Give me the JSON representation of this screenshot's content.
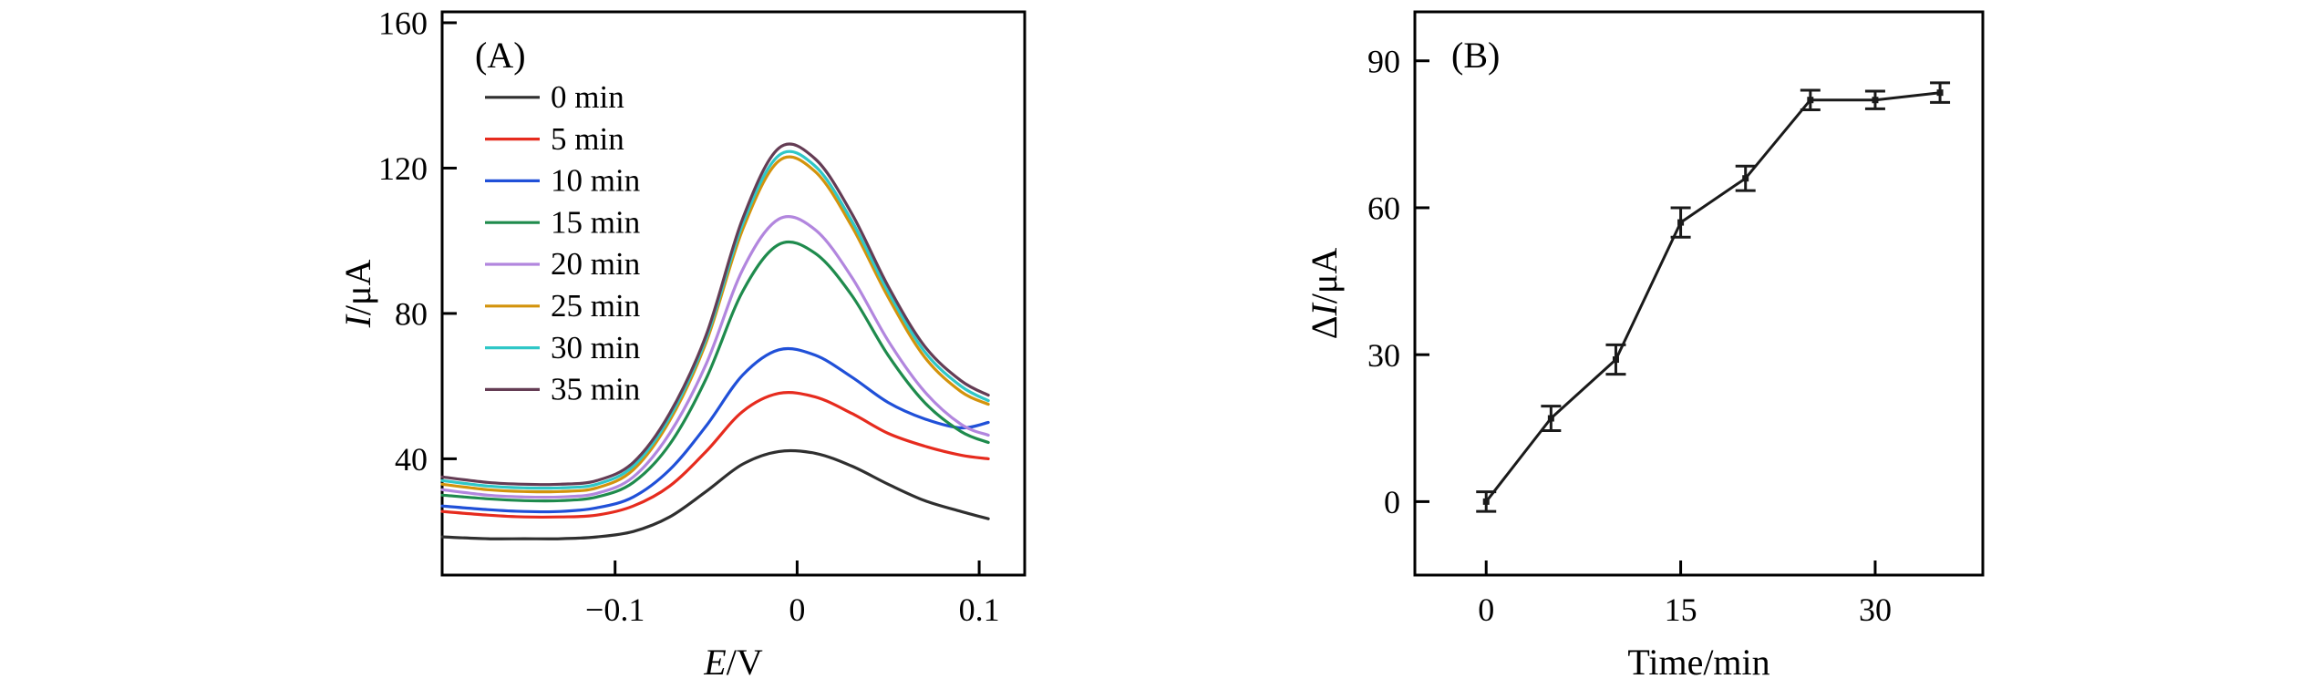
{
  "figure": {
    "background": "#ffffff"
  },
  "chart_data": [
    {
      "id": "A",
      "type": "line",
      "panel_label": "(A)",
      "xlabel": "E/V",
      "xlabel_segments": [
        {
          "text": "E",
          "italic": true
        },
        {
          "text": "/V",
          "italic": false
        }
      ],
      "ylabel": "I/μA",
      "ylabel_segments": [
        {
          "text": "I",
          "italic": true
        },
        {
          "text": "/μA",
          "italic": false
        }
      ],
      "xlim": [
        -0.195,
        0.125
      ],
      "ylim": [
        8,
        163
      ],
      "xticks": [
        {
          "value": -0.1,
          "label": "−0.1"
        },
        {
          "value": 0,
          "label": "0"
        },
        {
          "value": 0.1,
          "label": "0.1"
        }
      ],
      "yticks": [
        {
          "value": 40,
          "label": "40"
        },
        {
          "value": 80,
          "label": "80"
        },
        {
          "value": 120,
          "label": "120"
        },
        {
          "value": 160,
          "label": "160"
        }
      ],
      "grid": false,
      "smooth": true,
      "legend": {
        "visible": true,
        "position": "top-left"
      },
      "x": [
        -0.195,
        -0.17,
        -0.15,
        -0.13,
        -0.11,
        -0.09,
        -0.07,
        -0.05,
        -0.03,
        -0.01,
        0.01,
        0.03,
        0.05,
        0.07,
        0.09,
        0.105
      ],
      "series": [
        {
          "name": "0 min",
          "color": "#2f2f2f",
          "values": [
            18.5,
            18,
            18,
            18,
            18.5,
            20,
            24,
            31,
            38.5,
            42,
            41.5,
            38,
            33,
            28.5,
            25.5,
            23.5
          ]
        },
        {
          "name": "5 min",
          "color": "#e62b1e",
          "values": [
            25.5,
            24.5,
            24,
            24,
            24.5,
            27,
            32.5,
            42,
            53,
            58,
            57,
            52.5,
            47,
            43.5,
            41,
            40
          ]
        },
        {
          "name": "10 min",
          "color": "#2050d8",
          "values": [
            27,
            26,
            25.5,
            25.5,
            26.5,
            29.5,
            37,
            49,
            63,
            70,
            68.5,
            62.5,
            55.5,
            51,
            48.5,
            50
          ]
        },
        {
          "name": "15 min",
          "color": "#1f8b4d",
          "values": [
            30,
            29,
            28.5,
            28.5,
            29.5,
            33.5,
            44,
            62,
            86,
            99,
            96.5,
            85,
            68.5,
            55.5,
            47.5,
            44.5
          ]
        },
        {
          "name": "20 min",
          "color": "#b286de",
          "values": [
            31.5,
            30,
            29.5,
            29.5,
            30.5,
            35,
            47,
            66,
            92,
            106,
            103,
            90,
            72.5,
            58.5,
            49.5,
            46.5
          ]
        },
        {
          "name": "25 min",
          "color": "#d3930c",
          "values": [
            33,
            31.5,
            31,
            31,
            32,
            37,
            50.5,
            72,
            103,
            122,
            119,
            104,
            84.5,
            68,
            58.5,
            55
          ]
        },
        {
          "name": "30 min",
          "color": "#2fc7c7",
          "values": [
            34,
            32.5,
            32,
            32,
            33,
            38,
            51.5,
            73,
            104.5,
            123.5,
            120.5,
            105.5,
            86,
            69.5,
            60,
            56
          ]
        },
        {
          "name": "35 min",
          "color": "#643c54",
          "values": [
            35,
            33.5,
            33,
            33,
            34,
            39,
            52.5,
            74,
            106,
            125.5,
            122.5,
            107.5,
            87.5,
            71,
            61.5,
            57.5
          ]
        }
      ]
    },
    {
      "id": "B",
      "type": "line",
      "panel_label": "(B)",
      "xlabel": "Time/min",
      "xlabel_segments": [
        {
          "text": "Time/min",
          "italic": false
        }
      ],
      "ylabel": "ΔI/μA",
      "ylabel_segments": [
        {
          "text": "Δ",
          "italic": false
        },
        {
          "text": "I",
          "italic": true
        },
        {
          "text": "/μA",
          "italic": false
        }
      ],
      "xlim": [
        -5.5,
        38.3
      ],
      "ylim": [
        -15,
        100
      ],
      "xticks": [
        {
          "value": 0,
          "label": "0"
        },
        {
          "value": 15,
          "label": "15"
        },
        {
          "value": 30,
          "label": "30"
        }
      ],
      "yticks": [
        {
          "value": 0,
          "label": "0"
        },
        {
          "value": 30,
          "label": "30"
        },
        {
          "value": 60,
          "label": "60"
        },
        {
          "value": 90,
          "label": "90"
        }
      ],
      "grid": false,
      "smooth": false,
      "legend": {
        "visible": false,
        "position": "none"
      },
      "x": [
        0,
        5,
        10,
        15,
        20,
        25,
        30,
        35
      ],
      "series": [
        {
          "name": "ΔI",
          "color": "#1a1a1a",
          "marker": "square",
          "values": [
            0,
            17,
            29,
            57,
            66,
            82,
            82,
            83.5
          ],
          "errors": [
            2,
            2.5,
            3,
            3,
            2.5,
            2,
            1.8,
            2
          ]
        }
      ]
    }
  ]
}
